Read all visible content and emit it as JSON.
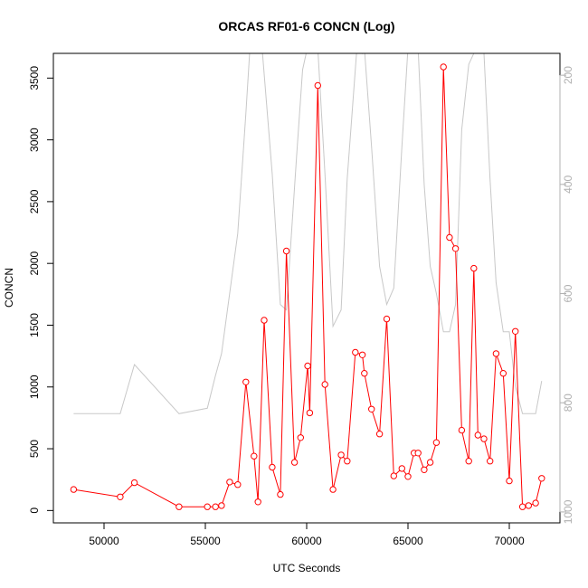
{
  "chart_data": {
    "type": "line",
    "title": "ORCAS RF01-6 CONCN (Log)",
    "xlabel": "UTC Seconds",
    "ylabel": "CONCN",
    "xlim": [
      47500,
      72500
    ],
    "ylim": [
      -100,
      3700
    ],
    "x_ticks": [
      50000,
      55000,
      60000,
      65000,
      70000
    ],
    "y_ticks": [
      0,
      500,
      1000,
      1500,
      2000,
      2500,
      3000,
      3500
    ],
    "secondary_axis": {
      "side": "right",
      "range_top": 160,
      "range_bottom": 1020,
      "ticks": [
        200,
        400,
        600,
        800,
        1000
      ],
      "color": "#b0b0b0"
    },
    "grid": false,
    "series": [
      {
        "role": "concn",
        "color": "#ff0000",
        "marker": "open-circle",
        "x": [
          48500,
          50800,
          51500,
          53700,
          55100,
          55500,
          55800,
          56200,
          56600,
          57000,
          57400,
          57600,
          57900,
          58300,
          58700,
          59000,
          59400,
          59700,
          60050,
          60150,
          60550,
          60900,
          61300,
          61700,
          62000,
          62400,
          62750,
          62850,
          63200,
          63600,
          63950,
          64300,
          64700,
          65000,
          65300,
          65500,
          65800,
          66100,
          66400,
          66750,
          67050,
          67350,
          67650,
          68000,
          68250,
          68450,
          68750,
          69050,
          69350,
          69700,
          70000,
          70300,
          70650,
          70950,
          71300,
          71600
        ],
        "y": [
          170,
          110,
          225,
          30,
          30,
          30,
          40,
          230,
          210,
          1040,
          440,
          70,
          1540,
          350,
          130,
          2100,
          390,
          590,
          1170,
          790,
          3440,
          1020,
          170,
          450,
          400,
          1280,
          1260,
          1110,
          820,
          620,
          1550,
          280,
          340,
          275,
          465,
          465,
          330,
          390,
          550,
          3590,
          2210,
          2120,
          650,
          400,
          1960,
          610,
          580,
          400,
          1270,
          1110,
          240,
          1450,
          30,
          40,
          60,
          260
        ]
      },
      {
        "role": "secondary",
        "color": "#c8c8c8",
        "x": [
          48500,
          50800,
          51500,
          53700,
          55100,
          55500,
          55800,
          56600,
          57000,
          57200,
          57600,
          57800,
          58300,
          58700,
          59000,
          59500,
          59800,
          60150,
          60550,
          60900,
          61300,
          61700,
          62000,
          62500,
          62750,
          62850,
          63200,
          63600,
          63950,
          64300,
          64700,
          65000,
          65300,
          65500,
          65800,
          66100,
          66400,
          66750,
          67050,
          67350,
          67650,
          68000,
          68250,
          68450,
          68750,
          69050,
          69350,
          69700,
          70000,
          70300,
          70650,
          70950,
          71300,
          71600
        ],
        "y": [
          820,
          820,
          730,
          820,
          810,
          750,
          710,
          490,
          270,
          150,
          100,
          150,
          380,
          620,
          630,
          350,
          190,
          130,
          150,
          380,
          660,
          630,
          390,
          140,
          160,
          150,
          330,
          550,
          620,
          590,
          330,
          150,
          130,
          150,
          400,
          550,
          600,
          670,
          670,
          620,
          300,
          180,
          160,
          130,
          160,
          390,
          580,
          670,
          670,
          770,
          820,
          820,
          820,
          760
        ]
      }
    ]
  }
}
